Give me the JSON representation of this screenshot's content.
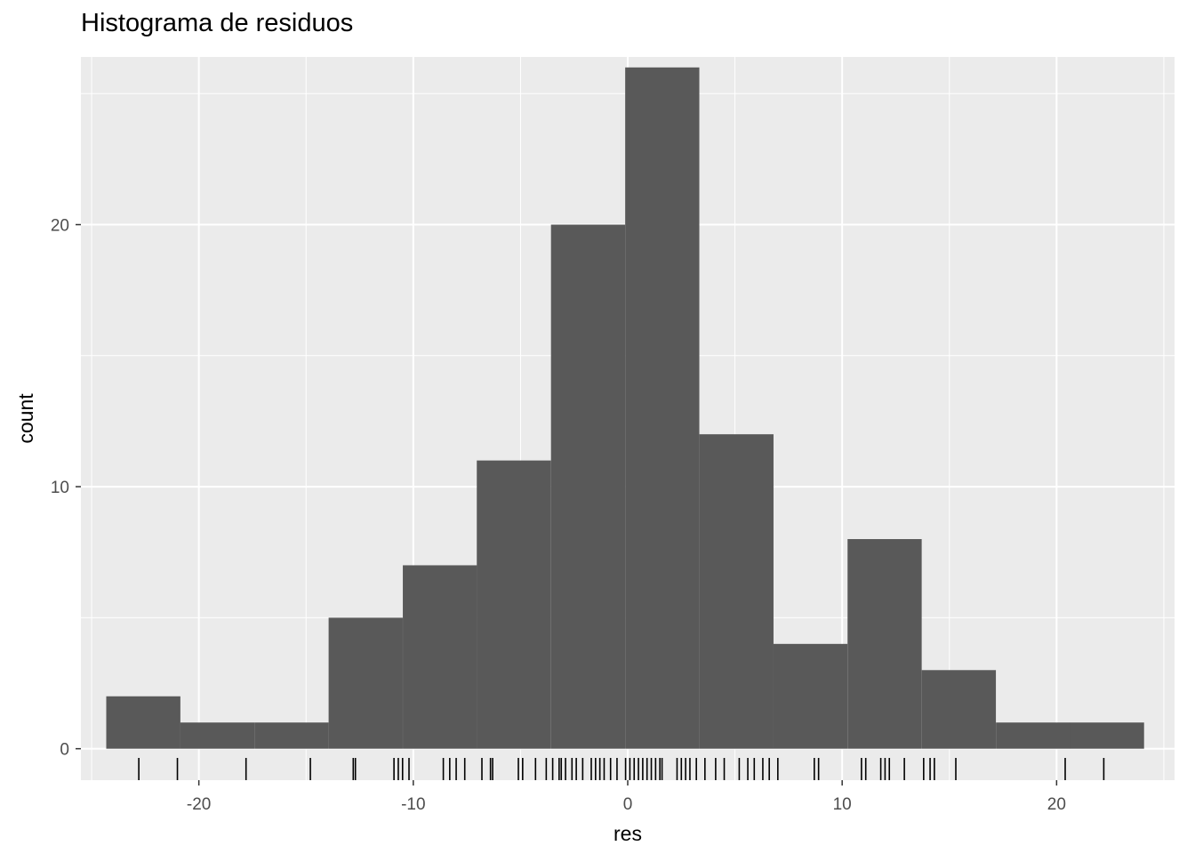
{
  "chart_data": {
    "type": "bar",
    "title": "Histograma de residuos",
    "xlabel": "res",
    "ylabel": "count",
    "xlim": [
      -25.5,
      25.5
    ],
    "ylim": [
      -1.2,
      26.4
    ],
    "x_ticks": [
      -20,
      -10,
      0,
      10,
      20
    ],
    "x_tick_labels": [
      "-20",
      "-10",
      "0",
      "10",
      "20"
    ],
    "y_ticks": [
      0,
      10,
      20
    ],
    "y_tick_labels": [
      "0",
      "10",
      "20"
    ],
    "x_minor_ticks": [
      -25,
      -15,
      -5,
      5,
      15,
      25
    ],
    "y_minor_ticks": [
      5,
      15,
      25
    ],
    "bin_width": 3.457,
    "bins": [
      {
        "x": -22.59,
        "count": 2
      },
      {
        "x": -19.14,
        "count": 1
      },
      {
        "x": -15.68,
        "count": 1
      },
      {
        "x": -12.22,
        "count": 5
      },
      {
        "x": -8.76,
        "count": 7
      },
      {
        "x": -5.31,
        "count": 11
      },
      {
        "x": -1.85,
        "count": 20
      },
      {
        "x": 1.61,
        "count": 26
      },
      {
        "x": 5.07,
        "count": 12
      },
      {
        "x": 8.52,
        "count": 4
      },
      {
        "x": 11.98,
        "count": 8
      },
      {
        "x": 15.44,
        "count": 3
      },
      {
        "x": 18.9,
        "count": 1
      },
      {
        "x": 22.35,
        "count": 1
      }
    ],
    "rug": [
      -22.8,
      -21.0,
      -17.8,
      -14.8,
      -12.8,
      -12.7,
      -10.9,
      -10.7,
      -10.5,
      -10.2,
      -8.6,
      -8.3,
      -8.0,
      -7.6,
      -6.8,
      -6.4,
      -6.3,
      -5.1,
      -4.9,
      -4.3,
      -3.8,
      -3.5,
      -3.2,
      -3.1,
      -2.9,
      -2.6,
      -2.4,
      -2.1,
      -1.7,
      -1.5,
      -1.3,
      -1.1,
      -0.8,
      -0.5,
      -0.1,
      0.1,
      0.3,
      0.5,
      0.7,
      0.9,
      1.1,
      1.3,
      1.5,
      1.6,
      2.3,
      2.5,
      2.7,
      2.9,
      3.2,
      3.6,
      4.1,
      4.5,
      5.2,
      5.6,
      5.9,
      6.3,
      6.6,
      7.0,
      8.7,
      8.9,
      10.9,
      11.1,
      11.8,
      12.0,
      12.2,
      12.9,
      13.8,
      14.1,
      14.3,
      15.3,
      20.4,
      22.2
    ],
    "grid": true,
    "bar_color": "#595959",
    "panel_color": "#ebebeb",
    "grid_color": "#ffffff",
    "rug_color": "#000000"
  }
}
